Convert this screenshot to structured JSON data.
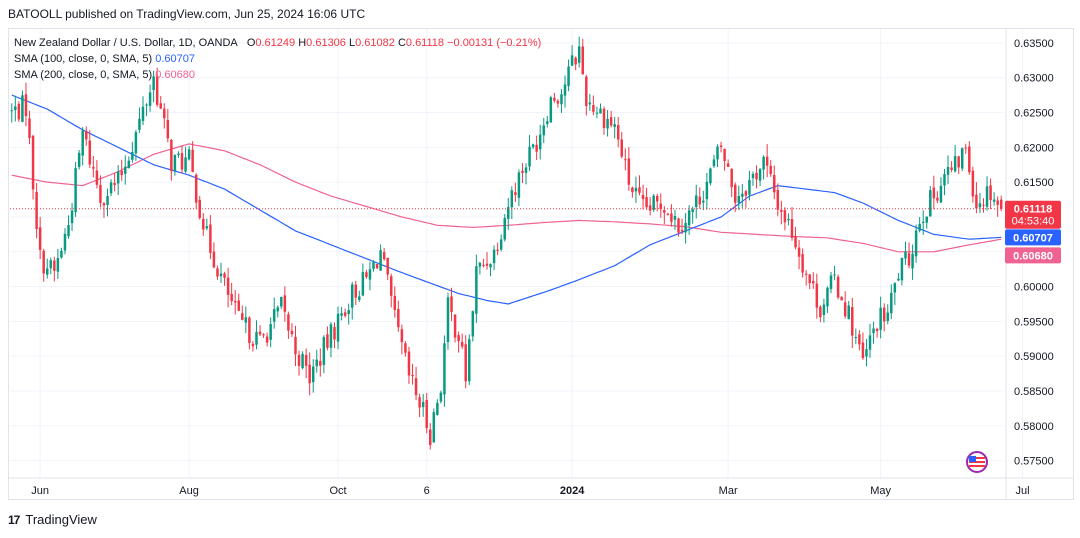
{
  "header": {
    "publisher_line": "BATOOLL published on TradingView.com, Jun 25, 2024 16:06 UTC"
  },
  "legend": {
    "symbol": "New Zealand Dollar / U.S. Dollar, 1D, OANDA",
    "o_label": "O",
    "o_value": "0.61249",
    "h_label": "H",
    "h_value": "0.61306",
    "l_label": "L",
    "l_value": "0.61082",
    "c_label": "C",
    "c_value": "0.61118",
    "change": "−0.00131 (−0.21%)",
    "sma100_label": "SMA (100, close, 0, SMA, 5)",
    "sma100_value": "0.60707",
    "sma200_label": "SMA (200, close, 0, SMA, 5)",
    "sma200_value": "0.60680"
  },
  "footer": {
    "brand": "TradingView",
    "logo_text": "17"
  },
  "colors": {
    "up": "#089981",
    "down": "#f23645",
    "sma100": "#2962ff",
    "sma200": "#f06292",
    "grid": "#f0f3fa"
  },
  "chart_data": {
    "type": "candlestick",
    "symbol": "NZDUSD",
    "timeframe": "1D",
    "y_ticks": [
      "0.63500",
      "0.63000",
      "0.62500",
      "0.62000",
      "0.61500",
      "0.61000",
      "0.60500",
      "0.60000",
      "0.59500",
      "0.59000",
      "0.58500",
      "0.58000",
      "0.57500"
    ],
    "ylim": [
      0.5725,
      0.637
    ],
    "x_ticks": [
      {
        "label": "Jun",
        "index": 8
      },
      {
        "label": "Aug",
        "index": 50
      },
      {
        "label": "Oct",
        "index": 92
      },
      {
        "label": "6",
        "index": 117
      },
      {
        "label": "2024",
        "index": 158
      },
      {
        "label": "Mar",
        "index": 202
      },
      {
        "label": "May",
        "index": 245
      },
      {
        "label": "Jul",
        "index": 285
      }
    ],
    "price_labels": [
      {
        "name": "last",
        "value": 0.61118,
        "text": "0.61118",
        "countdown": "04:53:40",
        "color": "#f23645"
      },
      {
        "name": "sma100",
        "value": 0.60707,
        "text": "0.60707",
        "color": "#2962ff"
      },
      {
        "name": "sma200",
        "value": 0.6068,
        "text": "0.60680",
        "color": "#f06292"
      }
    ],
    "close_anchors": [
      [
        0,
        0.625
      ],
      [
        4,
        0.626
      ],
      [
        8,
        0.604
      ],
      [
        12,
        0.602
      ],
      [
        16,
        0.609
      ],
      [
        20,
        0.622
      ],
      [
        25,
        0.613
      ],
      [
        30,
        0.615
      ],
      [
        35,
        0.622
      ],
      [
        40,
        0.63
      ],
      [
        45,
        0.618
      ],
      [
        50,
        0.618
      ],
      [
        55,
        0.607
      ],
      [
        60,
        0.6
      ],
      [
        64,
        0.595
      ],
      [
        70,
        0.592
      ],
      [
        76,
        0.597
      ],
      [
        80,
        0.591
      ],
      [
        84,
        0.587
      ],
      [
        90,
        0.593
      ],
      [
        96,
        0.599
      ],
      [
        100,
        0.601
      ],
      [
        104,
        0.605
      ],
      [
        108,
        0.595
      ],
      [
        112,
        0.587
      ],
      [
        116,
        0.582
      ],
      [
        118,
        0.579
      ],
      [
        121,
        0.586
      ],
      [
        123,
        0.597
      ],
      [
        126,
        0.593
      ],
      [
        128,
        0.587
      ],
      [
        131,
        0.602
      ],
      [
        136,
        0.605
      ],
      [
        140,
        0.612
      ],
      [
        144,
        0.617
      ],
      [
        148,
        0.621
      ],
      [
        152,
        0.627
      ],
      [
        155,
        0.628
      ],
      [
        158,
        0.632
      ],
      [
        160,
        0.634
      ],
      [
        162,
        0.627
      ],
      [
        166,
        0.625
      ],
      [
        170,
        0.623
      ],
      [
        174,
        0.615
      ],
      [
        178,
        0.611
      ],
      [
        184,
        0.612
      ],
      [
        188,
        0.609
      ],
      [
        192,
        0.611
      ],
      [
        196,
        0.615
      ],
      [
        200,
        0.62
      ],
      [
        204,
        0.613
      ],
      [
        208,
        0.615
      ],
      [
        212,
        0.618
      ],
      [
        216,
        0.612
      ],
      [
        220,
        0.608
      ],
      [
        224,
        0.602
      ],
      [
        228,
        0.597
      ],
      [
        232,
        0.601
      ],
      [
        236,
        0.596
      ],
      [
        240,
        0.589
      ],
      [
        244,
        0.595
      ],
      [
        247,
        0.596
      ],
      [
        250,
        0.602
      ],
      [
        253,
        0.604
      ],
      [
        256,
        0.61
      ],
      [
        260,
        0.613
      ],
      [
        263,
        0.616
      ],
      [
        266,
        0.617
      ],
      [
        269,
        0.62
      ],
      [
        272,
        0.612
      ],
      [
        276,
        0.614
      ],
      [
        279,
        0.611
      ]
    ],
    "sma100_anchors": [
      [
        0,
        0.6275
      ],
      [
        10,
        0.6255
      ],
      [
        20,
        0.6225
      ],
      [
        30,
        0.62
      ],
      [
        40,
        0.6175
      ],
      [
        50,
        0.616
      ],
      [
        60,
        0.614
      ],
      [
        70,
        0.611
      ],
      [
        80,
        0.608
      ],
      [
        90,
        0.606
      ],
      [
        100,
        0.604
      ],
      [
        110,
        0.602
      ],
      [
        118,
        0.6005
      ],
      [
        126,
        0.599
      ],
      [
        134,
        0.598
      ],
      [
        140,
        0.5975
      ],
      [
        146,
        0.5985
      ],
      [
        152,
        0.5995
      ],
      [
        160,
        0.601
      ],
      [
        170,
        0.603
      ],
      [
        180,
        0.606
      ],
      [
        190,
        0.608
      ],
      [
        200,
        0.61
      ],
      [
        208,
        0.613
      ],
      [
        216,
        0.6145
      ],
      [
        224,
        0.614
      ],
      [
        232,
        0.6135
      ],
      [
        240,
        0.612
      ],
      [
        250,
        0.6095
      ],
      [
        260,
        0.6075
      ],
      [
        270,
        0.6068
      ],
      [
        279,
        0.60707
      ]
    ],
    "sma200_anchors": [
      [
        0,
        0.616
      ],
      [
        10,
        0.615
      ],
      [
        20,
        0.6145
      ],
      [
        30,
        0.6165
      ],
      [
        40,
        0.619
      ],
      [
        50,
        0.6205
      ],
      [
        60,
        0.6195
      ],
      [
        70,
        0.6175
      ],
      [
        80,
        0.615
      ],
      [
        90,
        0.613
      ],
      [
        100,
        0.6115
      ],
      [
        110,
        0.61
      ],
      [
        120,
        0.6088
      ],
      [
        130,
        0.6085
      ],
      [
        140,
        0.6088
      ],
      [
        150,
        0.6092
      ],
      [
        160,
        0.6095
      ],
      [
        170,
        0.6093
      ],
      [
        180,
        0.609
      ],
      [
        190,
        0.6086
      ],
      [
        200,
        0.6078
      ],
      [
        210,
        0.6075
      ],
      [
        220,
        0.6072
      ],
      [
        230,
        0.607
      ],
      [
        240,
        0.6062
      ],
      [
        250,
        0.605
      ],
      [
        260,
        0.605
      ],
      [
        270,
        0.606
      ],
      [
        279,
        0.6068
      ]
    ]
  }
}
